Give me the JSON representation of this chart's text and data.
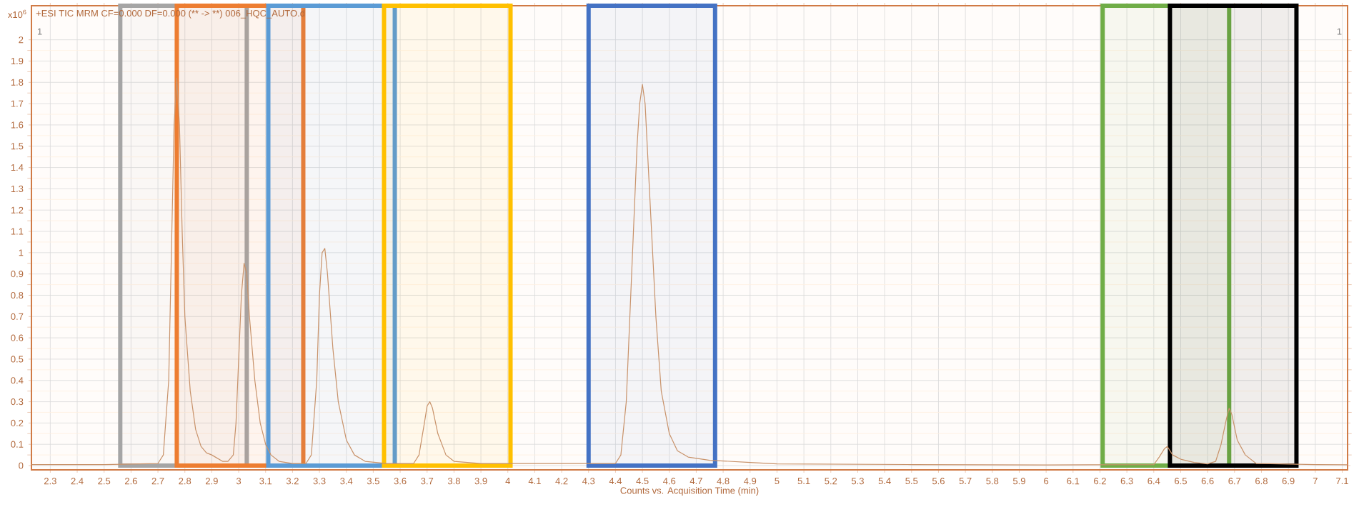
{
  "chart_data": {
    "type": "line",
    "title": "+ESI TIC MRM CF=0.000 DF=0.000 (** -> **) 006_HQC_AUTO.d",
    "xlabel": "Counts vs. Acquisition Time (min)",
    "ylabel": "x10$^{6}$",
    "annotations": [
      "1",
      "1"
    ],
    "x": [
      2.23,
      2.5,
      2.7,
      2.72,
      2.74,
      2.75,
      2.76,
      2.77,
      2.78,
      2.79,
      2.8,
      2.82,
      2.84,
      2.86,
      2.88,
      2.9,
      2.92,
      2.94,
      2.96,
      2.98,
      2.99,
      3.0,
      3.01,
      3.02,
      3.03,
      3.04,
      3.06,
      3.08,
      3.1,
      3.12,
      3.15,
      3.2,
      3.25,
      3.27,
      3.29,
      3.3,
      3.31,
      3.32,
      3.33,
      3.35,
      3.37,
      3.4,
      3.43,
      3.47,
      3.55,
      3.65,
      3.67,
      3.69,
      3.7,
      3.71,
      3.72,
      3.74,
      3.77,
      3.8,
      3.9,
      4.4,
      4.42,
      4.44,
      4.46,
      4.48,
      4.49,
      4.5,
      4.51,
      4.53,
      4.55,
      4.57,
      4.6,
      4.63,
      4.67,
      4.75,
      4.9,
      5.0,
      5.5,
      6.0,
      6.4,
      6.42,
      6.44,
      6.45,
      6.47,
      6.5,
      6.55,
      6.6,
      6.63,
      6.65,
      6.67,
      6.68,
      6.69,
      6.71,
      6.74,
      6.78,
      7.0,
      7.12
    ],
    "series": [
      {
        "color": "#c8926a",
        "values": [
          0.005,
          0.005,
          0.01,
          0.05,
          0.4,
          1.0,
          1.6,
          1.82,
          1.6,
          1.1,
          0.7,
          0.35,
          0.17,
          0.09,
          0.06,
          0.05,
          0.035,
          0.02,
          0.02,
          0.05,
          0.2,
          0.5,
          0.8,
          0.95,
          0.9,
          0.7,
          0.4,
          0.2,
          0.1,
          0.05,
          0.02,
          0.01,
          0.01,
          0.05,
          0.4,
          0.8,
          1.0,
          1.02,
          0.9,
          0.55,
          0.3,
          0.12,
          0.05,
          0.02,
          0.01,
          0.01,
          0.05,
          0.2,
          0.28,
          0.3,
          0.27,
          0.15,
          0.05,
          0.02,
          0.01,
          0.01,
          0.05,
          0.3,
          0.9,
          1.5,
          1.7,
          1.79,
          1.7,
          1.2,
          0.7,
          0.35,
          0.15,
          0.07,
          0.04,
          0.025,
          0.015,
          0.008,
          0.005,
          0.003,
          0.005,
          0.04,
          0.08,
          0.09,
          0.05,
          0.03,
          0.015,
          0.008,
          0.02,
          0.1,
          0.22,
          0.27,
          0.24,
          0.12,
          0.05,
          0.01,
          0.005,
          0.004
        ]
      }
    ],
    "xlim": [
      2.23,
      7.12
    ],
    "ylim": [
      -0.02,
      2.16
    ],
    "xticks": [
      2.3,
      2.4,
      2.5,
      2.6,
      2.7,
      2.8,
      2.9,
      3,
      3.1,
      3.2,
      3.3,
      3.4,
      3.5,
      3.6,
      3.7,
      3.8,
      3.9,
      4,
      4.1,
      4.2,
      4.3,
      4.4,
      4.5,
      4.6,
      4.7,
      4.8,
      4.9,
      5,
      5.1,
      5.2,
      5.3,
      5.4,
      5.5,
      5.6,
      5.7,
      5.8,
      5.9,
      6,
      6.1,
      6.2,
      6.3,
      6.4,
      6.5,
      6.6,
      6.7,
      6.8,
      6.9,
      7,
      7.1
    ],
    "yticks": [
      0,
      0.1,
      0.2,
      0.3,
      0.4,
      0.5,
      0.6,
      0.7,
      0.8,
      0.9,
      1,
      1.1,
      1.2,
      1.3,
      1.4,
      1.5,
      1.6,
      1.7,
      1.8,
      1.9,
      2
    ],
    "grid": true,
    "marker": "none",
    "line_style": "solid",
    "bands": [
      {
        "axis": "x",
        "from": 2.56,
        "to": 3.03,
        "color": "#a5a5a5"
      },
      {
        "axis": "x",
        "from": 2.77,
        "to": 3.24,
        "color": "#ed7d31"
      },
      {
        "axis": "x",
        "from": 3.11,
        "to": 3.58,
        "color": "#5b9bd5"
      },
      {
        "axis": "x",
        "from": 3.54,
        "to": 4.01,
        "color": "#ffc000"
      },
      {
        "axis": "x",
        "from": 4.3,
        "to": 4.77,
        "color": "#4472c4"
      },
      {
        "axis": "x",
        "from": 6.21,
        "to": 6.68,
        "color": "#70ad47"
      },
      {
        "axis": "x",
        "from": 6.46,
        "to": 6.93,
        "color": "#000000"
      }
    ]
  }
}
